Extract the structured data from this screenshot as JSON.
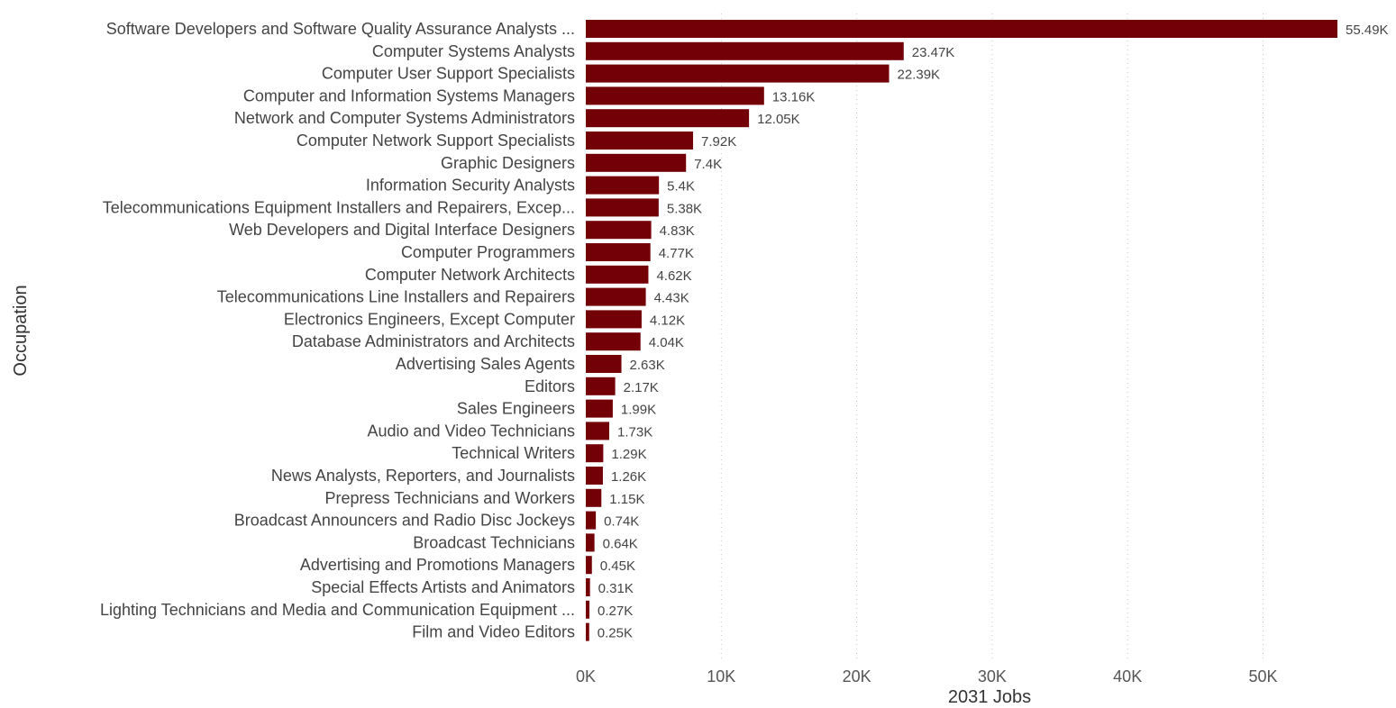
{
  "chart_data": {
    "type": "bar",
    "orientation": "horizontal",
    "xlabel": "2031 Jobs",
    "ylabel": "Occupation",
    "xlim": [
      0,
      57000
    ],
    "xticks": [
      0,
      10000,
      20000,
      30000,
      40000,
      50000
    ],
    "xtick_labels": [
      "0K",
      "10K",
      "20K",
      "30K",
      "40K",
      "50K"
    ],
    "grid": "vertical dotted",
    "bar_color": "#720006",
    "categories": [
      "Software Developers and Software Quality Assurance Analysts ...",
      "Computer Systems Analysts",
      "Computer User Support Specialists",
      "Computer and Information Systems Managers",
      "Network and Computer Systems Administrators",
      "Computer Network Support Specialists",
      "Graphic Designers",
      "Information Security Analysts",
      "Telecommunications Equipment Installers and Repairers, Excep...",
      "Web Developers and Digital Interface Designers",
      "Computer Programmers",
      "Computer Network Architects",
      "Telecommunications Line Installers and Repairers",
      "Electronics Engineers, Except Computer",
      "Database Administrators and Architects",
      "Advertising Sales Agents",
      "Editors",
      "Sales Engineers",
      "Audio and Video Technicians",
      "Technical Writers",
      "News Analysts, Reporters, and Journalists",
      "Prepress Technicians and Workers",
      "Broadcast Announcers and Radio Disc Jockeys",
      "Broadcast Technicians",
      "Advertising and Promotions Managers",
      "Special Effects Artists and Animators",
      "Lighting Technicians and Media and Communication Equipment ...",
      "Film and Video Editors"
    ],
    "values": [
      55490,
      23470,
      22390,
      13160,
      12050,
      7920,
      7400,
      5400,
      5380,
      4830,
      4770,
      4620,
      4430,
      4120,
      4040,
      2630,
      2170,
      1990,
      1730,
      1290,
      1260,
      1150,
      740,
      640,
      450,
      310,
      270,
      250
    ],
    "data_labels": [
      "55.49K",
      "23.47K",
      "22.39K",
      "13.16K",
      "12.05K",
      "7.92K",
      "7.4K",
      "5.4K",
      "5.38K",
      "4.83K",
      "4.77K",
      "4.62K",
      "4.43K",
      "4.12K",
      "4.04K",
      "2.63K",
      "2.17K",
      "1.99K",
      "1.73K",
      "1.29K",
      "1.26K",
      "1.15K",
      "0.74K",
      "0.64K",
      "0.45K",
      "0.31K",
      "0.27K",
      "0.25K"
    ]
  }
}
